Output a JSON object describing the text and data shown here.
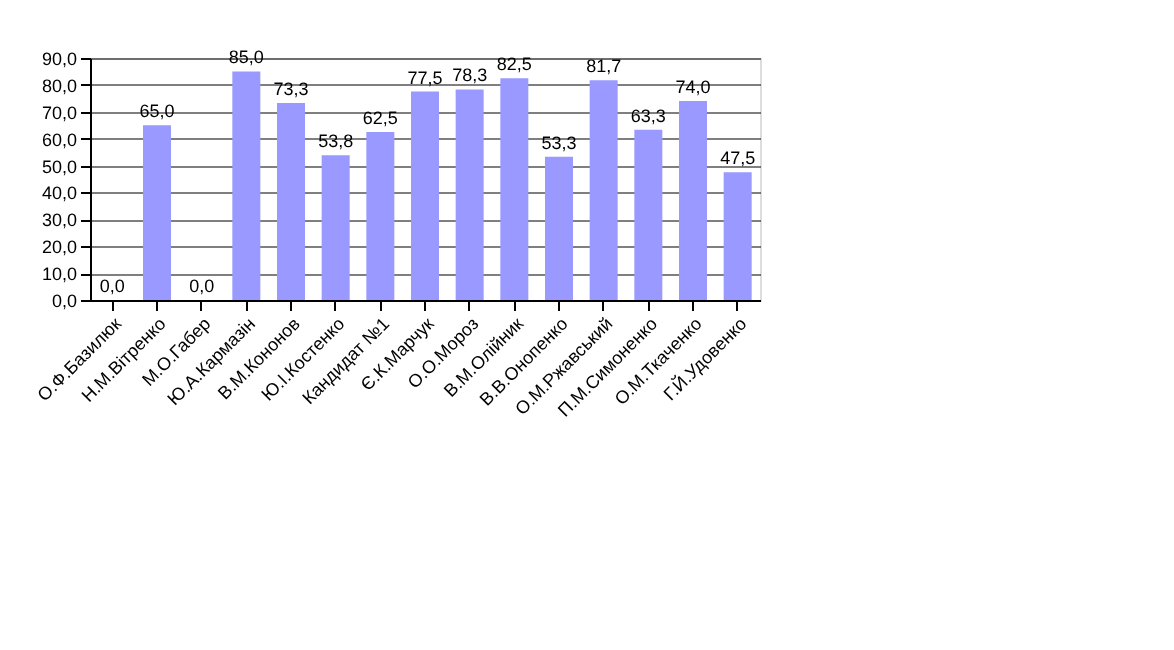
{
  "chart_data": {
    "type": "bar",
    "categories": [
      "О.Ф.Базилюк",
      "Н.М.Вітренко",
      "М.О.Габер",
      "Ю.А.Кармазін",
      "В.М.Кононов",
      "Ю.І.Костенко",
      "Кандидат №1",
      "Є.К.Марчук",
      "О.О.Мороз",
      "В.М.Олійник",
      "В.В.Онопенко",
      "О.М.Ржавський",
      "П.М.Симоненко",
      "О.М.Ткаченко",
      "Г.Й.Удовенко"
    ],
    "values": [
      0.0,
      65.0,
      0.0,
      85.0,
      73.3,
      53.8,
      62.5,
      77.5,
      78.3,
      82.5,
      53.3,
      81.7,
      63.3,
      74.0,
      47.5
    ],
    "value_labels": [
      "0,0",
      "65,0",
      "0,0",
      "85,0",
      "73,3",
      "53,8",
      "62,5",
      "77,5",
      "78,3",
      "82,5",
      "53,3",
      "81,7",
      "63,3",
      "74,0",
      "47,5"
    ],
    "color": "#9999ff",
    "ylim": [
      0,
      90
    ],
    "yticks": [
      {
        "value": 0,
        "label": "0,0"
      },
      {
        "value": 10,
        "label": "10,0"
      },
      {
        "value": 20,
        "label": "20,0"
      },
      {
        "value": 30,
        "label": "30,0"
      },
      {
        "value": 40,
        "label": "40,0"
      },
      {
        "value": 50,
        "label": "50,0"
      },
      {
        "value": 60,
        "label": "60,0"
      },
      {
        "value": 70,
        "label": "70,0"
      },
      {
        "value": 80,
        "label": "80,0"
      },
      {
        "value": 90,
        "label": "90,0"
      }
    ],
    "grid": "y",
    "legend": false
  }
}
